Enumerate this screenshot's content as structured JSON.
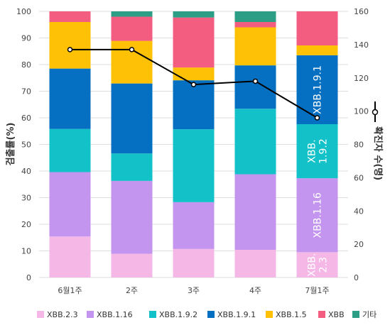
{
  "chart_data": {
    "type": "bar",
    "stacked": true,
    "categories": [
      "6월1주",
      "2주",
      "3주",
      "4주",
      "7월1주"
    ],
    "ylabel": "검출률(%)",
    "y2label": "확진자 수(명)",
    "ylim": [
      0,
      100
    ],
    "y2lim": [
      0,
      160
    ],
    "yticks": [
      0,
      10,
      20,
      30,
      40,
      50,
      60,
      70,
      80,
      90,
      100
    ],
    "y2ticks": [
      0,
      20,
      40,
      60,
      80,
      100,
      120,
      140,
      160
    ],
    "grid": true,
    "legend_position": "bottom",
    "series": [
      {
        "name": "XBB.2.3",
        "color": "#f5b8e6",
        "values": [
          15.4,
          8.9,
          10.7,
          10.4,
          9.5
        ]
      },
      {
        "name": "XBB.1.16",
        "color": "#c495ef",
        "values": [
          24.2,
          27.4,
          17.6,
          28.4,
          27.8
        ]
      },
      {
        "name": "XBB.1.9.2",
        "color": "#12c2c8",
        "values": [
          16.2,
          10.3,
          27.4,
          24.6,
          20.3
        ]
      },
      {
        "name": "XBB.1.9.1",
        "color": "#0570c1",
        "values": [
          22.7,
          26.3,
          18.4,
          16.3,
          25.9
        ]
      },
      {
        "name": "XBB.1.5",
        "color": "#fec106",
        "values": [
          17.5,
          16.0,
          4.8,
          14.3,
          3.7
        ]
      },
      {
        "name": "XBB",
        "color": "#f25d80",
        "values": [
          4.0,
          9.1,
          18.8,
          2.0,
          12.8
        ]
      },
      {
        "name": "기타",
        "color": "#2d9e86",
        "values": [
          0,
          2.0,
          2.3,
          4.0,
          0
        ]
      }
    ],
    "line": {
      "name": "확진자 수(명)",
      "axis": "right",
      "color": "#000000",
      "values": [
        137,
        137,
        116,
        118,
        96
      ]
    },
    "bar_labels": [
      {
        "series": "XBB.1.9.1",
        "category": "7월1주",
        "text": "XBB.1.9.1",
        "color": "#ffffff"
      },
      {
        "series": "XBB.1.9.2",
        "category": "7월1주",
        "line1": "XBB.",
        "line2": "1.9.2",
        "color": "#111111"
      },
      {
        "series": "XBB.1.16",
        "category": "7월1주",
        "text": "XBB.1.16",
        "color": "#111111"
      },
      {
        "series": "XBB.2.3",
        "category": "7월1주",
        "line1": "XBB.",
        "line2": "2.3",
        "color": "#111111"
      }
    ]
  }
}
